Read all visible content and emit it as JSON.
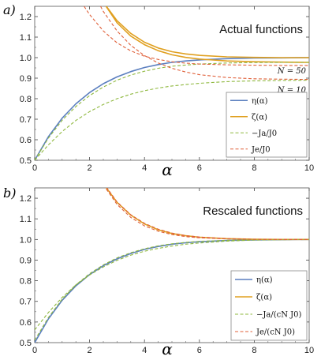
{
  "colors": {
    "eta": "#5b7fbf",
    "zeta": "#e0a020",
    "ja": "#8fb83e",
    "je": "#e0603a"
  },
  "chart_data": [
    {
      "type": "line",
      "panel_label": "a)",
      "title": "Actual functions",
      "xlabel": "α",
      "xlim": [
        0,
        10
      ],
      "ylim": [
        0.5,
        1.25
      ],
      "xticks": [
        0,
        2,
        4,
        6,
        8,
        10
      ],
      "yticks": [
        0.5,
        0.6,
        0.7,
        0.8,
        0.9,
        1.0,
        1.1,
        1.2
      ],
      "ytick_labels": [
        "0.5",
        "0.6",
        "0.7",
        "0.8",
        "0.9",
        "1.0",
        "1.1",
        "1.2"
      ],
      "annotations": [
        "N = 50",
        "N = 10"
      ],
      "legend_position": "lower-right",
      "series": [
        {
          "name": "η(α)",
          "style": "solid",
          "color_key": "eta",
          "x": [
            0,
            0.5,
            1,
            1.5,
            2,
            2.5,
            3,
            3.5,
            4,
            4.5,
            5,
            5.5,
            6,
            7,
            8,
            9,
            10
          ],
          "y": [
            0.5,
            0.615,
            0.705,
            0.775,
            0.83,
            0.873,
            0.906,
            0.932,
            0.952,
            0.966,
            0.977,
            0.984,
            0.989,
            0.995,
            0.998,
            0.999,
            1.0
          ]
        },
        {
          "name": "ζ(α)",
          "style": "solid",
          "color_key": "zeta",
          "x": [
            2.5,
            3,
            3.5,
            4,
            4.5,
            5,
            5.5,
            6,
            7,
            8,
            9,
            10
          ],
          "y": [
            1.27,
            1.18,
            1.118,
            1.075,
            1.047,
            1.029,
            1.018,
            1.011,
            1.004,
            1.001,
            1.0,
            1.0
          ]
        },
        {
          "name": "ζ(α) N = 10",
          "style": "solid",
          "color_key": "zeta",
          "x": [
            2.6,
            3,
            3.5,
            4,
            4.5,
            5,
            5.5,
            6,
            7,
            8,
            9,
            10
          ],
          "y": [
            1.25,
            1.17,
            1.105,
            1.063,
            1.034,
            1.014,
            1.001,
            0.993,
            0.984,
            0.98,
            0.978,
            0.977
          ]
        },
        {
          "name": "−Ja/J0 N = 50",
          "style": "dashed",
          "color_key": "ja",
          "x": [
            0,
            0.5,
            1,
            1.5,
            2,
            2.5,
            3,
            3.5,
            4,
            4.5,
            5,
            5.5,
            6,
            7,
            8,
            9,
            10
          ],
          "y": [
            0.5,
            0.608,
            0.695,
            0.762,
            0.815,
            0.857,
            0.89,
            0.915,
            0.934,
            0.948,
            0.958,
            0.964,
            0.969,
            0.974,
            0.976,
            0.977,
            0.977
          ]
        },
        {
          "name": "−Ja/J0 N = 10",
          "style": "dashed",
          "color_key": "ja",
          "x": [
            0,
            0.5,
            1,
            1.5,
            2,
            2.5,
            3,
            3.5,
            4,
            4.5,
            5,
            5.5,
            6,
            7,
            8,
            9,
            10
          ],
          "y": [
            0.5,
            0.575,
            0.64,
            0.694,
            0.737,
            0.772,
            0.8,
            0.822,
            0.839,
            0.852,
            0.862,
            0.869,
            0.875,
            0.883,
            0.887,
            0.889,
            0.89
          ]
        },
        {
          "name": "Je/J0 N = 50",
          "style": "dashed",
          "color_key": "je",
          "x": [
            1.8,
            2,
            2.5,
            3,
            3.5,
            4,
            4.5,
            5,
            5.5,
            6,
            7,
            8,
            9,
            10
          ],
          "y": [
            1.25,
            1.21,
            1.13,
            1.072,
            1.033,
            1.007,
            0.991,
            0.98,
            0.973,
            0.969,
            0.965,
            0.963,
            0.962,
            0.962
          ]
        },
        {
          "name": "Je/J0 N = 10",
          "style": "dashed",
          "color_key": "je",
          "x": [
            2.4,
            2.5,
            3,
            3.5,
            4,
            4.5,
            5,
            5.5,
            6,
            7,
            8,
            9,
            10
          ],
          "y": [
            1.25,
            1.225,
            1.13,
            1.06,
            1.01,
            0.974,
            0.948,
            0.93,
            0.917,
            0.903,
            0.897,
            0.895,
            0.894
          ]
        }
      ],
      "legend": [
        {
          "label": "η(α)",
          "style": "solid",
          "color_key": "eta"
        },
        {
          "label": "ζ(α)",
          "style": "solid",
          "color_key": "zeta"
        },
        {
          "label": "−Ja/J0",
          "style": "dashed",
          "color_key": "ja"
        },
        {
          "label": "Je/J0",
          "style": "dashed",
          "color_key": "je"
        }
      ]
    },
    {
      "type": "line",
      "panel_label": "b)",
      "title": "Rescaled functions",
      "xlabel": "α",
      "xlim": [
        0,
        10
      ],
      "ylim": [
        0.5,
        1.25
      ],
      "xticks": [
        0,
        2,
        4,
        6,
        8,
        10
      ],
      "yticks": [
        0.5,
        0.6,
        0.7,
        0.8,
        0.9,
        1.0,
        1.1,
        1.2
      ],
      "ytick_labels": [
        "0.5",
        "0.6",
        "0.7",
        "0.8",
        "0.9",
        "1.0",
        "1.1",
        "1.2"
      ],
      "annotations": [],
      "legend_position": "lower-right",
      "series": [
        {
          "name": "η(α)",
          "style": "solid",
          "color_key": "eta",
          "x": [
            0,
            0.5,
            1,
            1.5,
            2,
            2.5,
            3,
            3.5,
            4,
            4.5,
            5,
            5.5,
            6,
            7,
            8,
            9,
            10
          ],
          "y": [
            0.5,
            0.615,
            0.705,
            0.775,
            0.83,
            0.873,
            0.906,
            0.932,
            0.952,
            0.966,
            0.977,
            0.984,
            0.989,
            0.995,
            0.998,
            0.999,
            1.0
          ]
        },
        {
          "name": "ζ(α)",
          "style": "solid",
          "color_key": "zeta",
          "x": [
            2.5,
            3,
            3.5,
            4,
            4.5,
            5,
            5.5,
            6,
            7,
            8,
            9,
            10
          ],
          "y": [
            1.27,
            1.18,
            1.118,
            1.075,
            1.047,
            1.029,
            1.018,
            1.011,
            1.004,
            1.001,
            1.0,
            1.0
          ]
        },
        {
          "name": "−Ja/(cN J0) N = 10",
          "style": "dashed",
          "color_key": "ja",
          "x": [
            0,
            0.5,
            1,
            1.5,
            2,
            2.5,
            3,
            3.5,
            4,
            4.5,
            5,
            5.5,
            6,
            7,
            8,
            9,
            10
          ],
          "y": [
            0.562,
            0.646,
            0.719,
            0.78,
            0.828,
            0.867,
            0.899,
            0.924,
            0.943,
            0.957,
            0.968,
            0.977,
            0.983,
            0.992,
            0.997,
            0.999,
            1.0
          ]
        },
        {
          "name": "−Ja/(cN J0) N = 50",
          "style": "dashed",
          "color_key": "ja",
          "x": [
            0,
            0.5,
            1,
            1.5,
            2,
            2.5,
            3,
            3.5,
            4,
            4.5,
            5,
            5.5,
            6,
            7,
            8,
            9,
            10
          ],
          "y": [
            0.512,
            0.622,
            0.711,
            0.78,
            0.834,
            0.877,
            0.911,
            0.936,
            0.955,
            0.969,
            0.979,
            0.986,
            0.991,
            0.996,
            0.998,
            0.999,
            1.0
          ]
        },
        {
          "name": "Je/(cN J0) N = 10",
          "style": "dashed",
          "color_key": "je",
          "x": [
            2.5,
            3,
            3.5,
            4,
            4.5,
            5,
            5.5,
            6,
            7,
            8,
            9,
            10
          ],
          "y": [
            1.265,
            1.17,
            1.107,
            1.066,
            1.04,
            1.024,
            1.014,
            1.008,
            1.003,
            1.001,
            1.0,
            1.0
          ]
        },
        {
          "name": "Je/(cN J0) N = 50",
          "style": "dashed",
          "color_key": "je",
          "x": [
            2.5,
            3,
            3.5,
            4,
            4.5,
            5,
            5.5,
            6,
            7,
            8,
            9,
            10
          ],
          "y": [
            1.275,
            1.182,
            1.12,
            1.078,
            1.05,
            1.031,
            1.019,
            1.012,
            1.004,
            1.001,
            1.0,
            1.0
          ]
        }
      ],
      "legend": [
        {
          "label": "η(α)",
          "style": "solid",
          "color_key": "eta"
        },
        {
          "label": "ζ(α)",
          "style": "solid",
          "color_key": "zeta"
        },
        {
          "label": "−Ja/(cN J0)",
          "style": "dashed",
          "color_key": "ja"
        },
        {
          "label": "Je/(cN J0)",
          "style": "dashed",
          "color_key": "je"
        }
      ]
    }
  ]
}
